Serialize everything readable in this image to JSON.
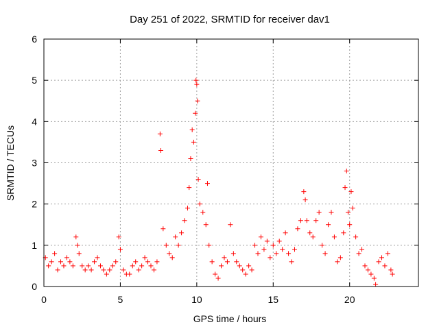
{
  "chart_data": {
    "type": "scatter",
    "title": "Day 251 of 2022, SRMTID for receiver dav1",
    "xlabel": "GPS time / hours",
    "ylabel": "SRMTID / TECUs",
    "xlim": [
      0,
      24.5
    ],
    "ylim": [
      0,
      6
    ],
    "xticks": [
      0,
      5,
      10,
      15,
      20
    ],
    "yticks": [
      0,
      1,
      2,
      3,
      4,
      5,
      6
    ],
    "grid": true,
    "marker": "+",
    "color": "#ff0000",
    "series": [
      {
        "name": "SRMTID",
        "points": [
          [
            0.1,
            0.7
          ],
          [
            0.3,
            0.5
          ],
          [
            0.5,
            0.6
          ],
          [
            0.7,
            0.8
          ],
          [
            0.9,
            0.4
          ],
          [
            1.1,
            0.6
          ],
          [
            1.3,
            0.5
          ],
          [
            1.5,
            0.7
          ],
          [
            1.7,
            0.6
          ],
          [
            1.9,
            0.5
          ],
          [
            2.1,
            1.2
          ],
          [
            2.2,
            1.0
          ],
          [
            2.3,
            0.8
          ],
          [
            2.5,
            0.5
          ],
          [
            2.7,
            0.4
          ],
          [
            2.9,
            0.5
          ],
          [
            3.1,
            0.4
          ],
          [
            3.3,
            0.6
          ],
          [
            3.5,
            0.7
          ],
          [
            3.7,
            0.5
          ],
          [
            3.9,
            0.4
          ],
          [
            4.1,
            0.3
          ],
          [
            4.3,
            0.4
          ],
          [
            4.5,
            0.5
          ],
          [
            4.7,
            0.6
          ],
          [
            4.9,
            1.2
          ],
          [
            5.0,
            0.9
          ],
          [
            5.2,
            0.4
          ],
          [
            5.4,
            0.3
          ],
          [
            5.6,
            0.3
          ],
          [
            5.8,
            0.5
          ],
          [
            6.0,
            0.6
          ],
          [
            6.2,
            0.4
          ],
          [
            6.4,
            0.5
          ],
          [
            6.6,
            0.7
          ],
          [
            6.8,
            0.6
          ],
          [
            7.0,
            0.5
          ],
          [
            7.2,
            0.4
          ],
          [
            7.4,
            0.6
          ],
          [
            7.6,
            3.7
          ],
          [
            7.65,
            3.3
          ],
          [
            7.8,
            1.4
          ],
          [
            8.0,
            1.0
          ],
          [
            8.2,
            0.8
          ],
          [
            8.4,
            0.7
          ],
          [
            8.6,
            1.2
          ],
          [
            8.8,
            1.0
          ],
          [
            9.0,
            1.3
          ],
          [
            9.2,
            1.6
          ],
          [
            9.4,
            1.9
          ],
          [
            9.5,
            2.4
          ],
          [
            9.6,
            3.1
          ],
          [
            9.7,
            3.8
          ],
          [
            9.8,
            3.5
          ],
          [
            9.9,
            4.2
          ],
          [
            9.95,
            5.0
          ],
          [
            10.0,
            4.9
          ],
          [
            10.05,
            4.5
          ],
          [
            10.1,
            2.6
          ],
          [
            10.2,
            2.0
          ],
          [
            10.4,
            1.8
          ],
          [
            10.6,
            1.5
          ],
          [
            10.7,
            2.5
          ],
          [
            10.8,
            1.0
          ],
          [
            11.0,
            0.6
          ],
          [
            11.2,
            0.3
          ],
          [
            11.4,
            0.2
          ],
          [
            11.6,
            0.5
          ],
          [
            11.8,
            0.7
          ],
          [
            12.0,
            0.6
          ],
          [
            12.2,
            1.5
          ],
          [
            12.4,
            0.8
          ],
          [
            12.6,
            0.6
          ],
          [
            12.8,
            0.5
          ],
          [
            13.0,
            0.4
          ],
          [
            13.2,
            0.3
          ],
          [
            13.4,
            0.5
          ],
          [
            13.6,
            0.4
          ],
          [
            13.8,
            1.0
          ],
          [
            14.0,
            0.8
          ],
          [
            14.2,
            1.2
          ],
          [
            14.4,
            0.9
          ],
          [
            14.6,
            1.1
          ],
          [
            14.8,
            0.7
          ],
          [
            15.0,
            1.0
          ],
          [
            15.2,
            0.8
          ],
          [
            15.4,
            1.1
          ],
          [
            15.6,
            0.9
          ],
          [
            15.8,
            1.3
          ],
          [
            16.0,
            0.8
          ],
          [
            16.2,
            0.6
          ],
          [
            16.4,
            0.9
          ],
          [
            16.6,
            1.4
          ],
          [
            16.8,
            1.6
          ],
          [
            17.0,
            2.3
          ],
          [
            17.1,
            2.1
          ],
          [
            17.2,
            1.6
          ],
          [
            17.4,
            1.3
          ],
          [
            17.6,
            1.2
          ],
          [
            17.8,
            1.6
          ],
          [
            18.0,
            1.8
          ],
          [
            18.2,
            1.0
          ],
          [
            18.4,
            0.8
          ],
          [
            18.6,
            1.5
          ],
          [
            18.8,
            1.8
          ],
          [
            19.0,
            1.2
          ],
          [
            19.2,
            0.6
          ],
          [
            19.4,
            0.7
          ],
          [
            19.6,
            1.3
          ],
          [
            19.7,
            2.4
          ],
          [
            19.8,
            2.8
          ],
          [
            19.9,
            1.8
          ],
          [
            20.0,
            1.5
          ],
          [
            20.1,
            2.3
          ],
          [
            20.2,
            1.9
          ],
          [
            20.4,
            1.2
          ],
          [
            20.6,
            0.8
          ],
          [
            20.8,
            0.9
          ],
          [
            21.0,
            0.5
          ],
          [
            21.2,
            0.4
          ],
          [
            21.4,
            0.3
          ],
          [
            21.6,
            0.2
          ],
          [
            21.7,
            0.05
          ],
          [
            21.9,
            0.6
          ],
          [
            22.1,
            0.7
          ],
          [
            22.3,
            0.5
          ],
          [
            22.5,
            0.8
          ],
          [
            22.7,
            0.4
          ],
          [
            22.8,
            0.3
          ]
        ]
      }
    ]
  }
}
